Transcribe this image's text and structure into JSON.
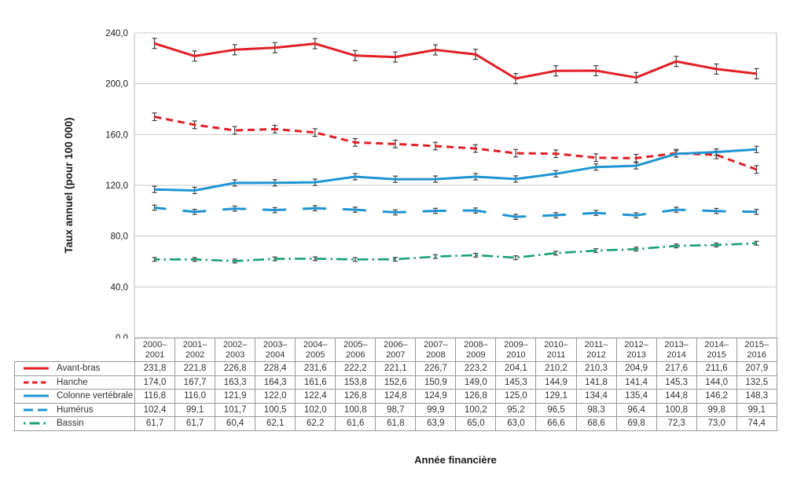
{
  "figure": {
    "ylabel": "Taux annuel (pour 100 000)",
    "xlabel": "Année financière"
  },
  "chart_data": {
    "type": "line",
    "title": "",
    "xlabel": "Année financière",
    "ylabel": "Taux annuel (pour 100 000)",
    "ylim": [
      0,
      240
    ],
    "ytick_step": 40,
    "ytick_labels": [
      "0,0",
      "40,0",
      "80,0",
      "120,0",
      "160,0",
      "200,0",
      "240,0"
    ],
    "grid": "horizontal",
    "legend_position": "table-left",
    "error_bars": true,
    "categories": [
      "2000–2001",
      "2001–2002",
      "2002–2003",
      "2003–2004",
      "2004–2005",
      "2005–2006",
      "2006–2007",
      "2007–2008",
      "2008–2009",
      "2009–2010",
      "2010–2011",
      "2011–2012",
      "2012–2013",
      "2013–2014",
      "2014–2015",
      "2015–2016"
    ],
    "series": [
      {
        "name": "Avant-bras",
        "color": "#e02026",
        "dash": "solid",
        "values": [
          231.8,
          221.8,
          226.8,
          228.4,
          231.6,
          222.2,
          221.1,
          226.7,
          223.2,
          204.1,
          210.2,
          210.3,
          204.9,
          217.6,
          211.6,
          207.9
        ],
        "error_bar": 4.0
      },
      {
        "name": "Hanche",
        "color": "#e02026",
        "dash": "dashed",
        "values": [
          174.0,
          167.7,
          163.3,
          164.3,
          161.6,
          153.8,
          152.6,
          150.9,
          149.0,
          145.3,
          144.9,
          141.8,
          141.4,
          145.3,
          144.0,
          132.5
        ],
        "error_bar": 3.0
      },
      {
        "name": "Colonne vertébrale",
        "color": "#1e94d2",
        "dash": "solid",
        "values": [
          116.8,
          116.0,
          121.9,
          122.0,
          122.4,
          126.8,
          124.8,
          124.9,
          126.8,
          125.0,
          129.1,
          134.4,
          135.4,
          144.8,
          146.2,
          148.3
        ],
        "error_bar": 2.5
      },
      {
        "name": "Humérus",
        "color": "#1e94d2",
        "dash": "long-dash",
        "values": [
          102.4,
          99.1,
          101.7,
          100.5,
          102.0,
          100.8,
          98.7,
          99.9,
          100.2,
          95.2,
          96.5,
          98.3,
          96.4,
          100.8,
          99.8,
          99.1
        ],
        "error_bar": 2.0
      },
      {
        "name": "Bassin",
        "color": "#17a076",
        "dash": "dash-dot",
        "values": [
          61.7,
          61.7,
          60.4,
          62.1,
          62.2,
          61.6,
          61.8,
          63.9,
          65.0,
          63.0,
          66.6,
          68.6,
          69.8,
          72.3,
          73.0,
          74.4
        ],
        "error_bar": 1.5
      }
    ],
    "value_format": "comma-decimal-1"
  },
  "colors": {
    "grid": "#c9c9c9",
    "axis_frame": "#b9b9b9",
    "error_bar": "#3d3d3d",
    "table_border": "#999999",
    "text": "#1a1a1a"
  }
}
